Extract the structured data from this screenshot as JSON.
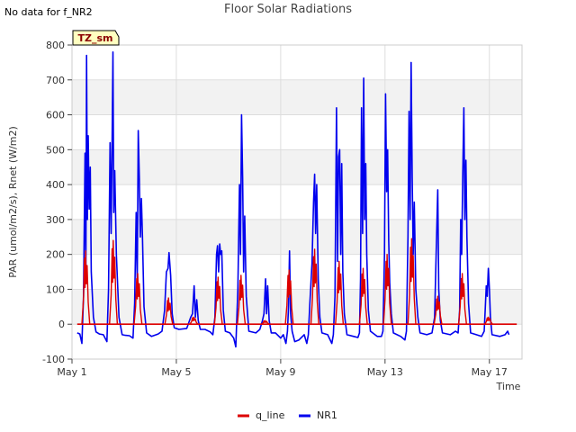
{
  "header": {
    "nodata_text": "No data for f_NR2"
  },
  "chart_data": {
    "type": "line",
    "title": "Floor Solar Radiations",
    "xlabel": "Time",
    "ylabel": "PAR (umol/m2/s), Rnet (W/m2)",
    "xlim": [
      1.0,
      18.25
    ],
    "ylim": [
      -100,
      800
    ],
    "y_ticks": [
      -100,
      0,
      100,
      200,
      300,
      400,
      500,
      600,
      700,
      800
    ],
    "x_ticks": [
      {
        "day": 1,
        "label": "May 1"
      },
      {
        "day": 5,
        "label": "May 5"
      },
      {
        "day": 9,
        "label": "May 9"
      },
      {
        "day": 13,
        "label": "May 13"
      },
      {
        "day": 17,
        "label": "May 17"
      }
    ],
    "tag_label": "TZ_sm",
    "legend": [
      {
        "name": "q_line",
        "color": "#dd0000"
      },
      {
        "name": "NR1",
        "color": "#0000ee"
      }
    ],
    "series": [
      {
        "name": "q_line",
        "color": "#dd0000",
        "points": [
          [
            1.2,
            0
          ],
          [
            18.05,
            0
          ]
        ]
      },
      {
        "name": "NR1",
        "color": "#0000ee",
        "points": [
          [
            1.2,
            -25
          ],
          [
            1.3,
            -28
          ],
          [
            1.38,
            -55
          ],
          [
            1.44,
            80
          ],
          [
            1.5,
            490
          ],
          [
            1.53,
            130
          ],
          [
            1.56,
            770
          ],
          [
            1.59,
            300
          ],
          [
            1.62,
            540
          ],
          [
            1.66,
            330
          ],
          [
            1.7,
            450
          ],
          [
            1.74,
            150
          ],
          [
            1.82,
            20
          ],
          [
            1.92,
            -22
          ],
          [
            2.05,
            -28
          ],
          [
            2.2,
            -30
          ],
          [
            2.34,
            -50
          ],
          [
            2.4,
            100
          ],
          [
            2.46,
            520
          ],
          [
            2.5,
            260
          ],
          [
            2.54,
            530
          ],
          [
            2.57,
            780
          ],
          [
            2.6,
            320
          ],
          [
            2.64,
            440
          ],
          [
            2.7,
            200
          ],
          [
            2.8,
            20
          ],
          [
            2.92,
            -30
          ],
          [
            3.05,
            -32
          ],
          [
            3.2,
            -33
          ],
          [
            3.34,
            -40
          ],
          [
            3.4,
            60
          ],
          [
            3.46,
            320
          ],
          [
            3.5,
            120
          ],
          [
            3.54,
            555
          ],
          [
            3.58,
            420
          ],
          [
            3.62,
            250
          ],
          [
            3.66,
            360
          ],
          [
            3.7,
            250
          ],
          [
            3.76,
            50
          ],
          [
            3.86,
            -25
          ],
          [
            4.05,
            -35
          ],
          [
            4.3,
            -28
          ],
          [
            4.45,
            -20
          ],
          [
            4.55,
            40
          ],
          [
            4.62,
            150
          ],
          [
            4.68,
            160
          ],
          [
            4.72,
            205
          ],
          [
            4.78,
            140
          ],
          [
            4.84,
            30
          ],
          [
            4.92,
            -10
          ],
          [
            5.1,
            -15
          ],
          [
            5.4,
            -12
          ],
          [
            5.55,
            20
          ],
          [
            5.62,
            30
          ],
          [
            5.68,
            110
          ],
          [
            5.73,
            20
          ],
          [
            5.78,
            70
          ],
          [
            5.84,
            10
          ],
          [
            5.92,
            -15
          ],
          [
            6.1,
            -15
          ],
          [
            6.3,
            -22
          ],
          [
            6.4,
            -30
          ],
          [
            6.48,
            20
          ],
          [
            6.54,
            200
          ],
          [
            6.58,
            225
          ],
          [
            6.62,
            150
          ],
          [
            6.66,
            230
          ],
          [
            6.7,
            200
          ],
          [
            6.74,
            210
          ],
          [
            6.8,
            40
          ],
          [
            6.88,
            -20
          ],
          [
            7.05,
            -25
          ],
          [
            7.2,
            -40
          ],
          [
            7.28,
            -65
          ],
          [
            7.36,
            100
          ],
          [
            7.42,
            400
          ],
          [
            7.46,
            200
          ],
          [
            7.5,
            600
          ],
          [
            7.54,
            420
          ],
          [
            7.58,
            150
          ],
          [
            7.62,
            310
          ],
          [
            7.68,
            80
          ],
          [
            7.78,
            -20
          ],
          [
            8.05,
            -25
          ],
          [
            8.2,
            -15
          ],
          [
            8.3,
            10
          ],
          [
            8.36,
            30
          ],
          [
            8.42,
            130
          ],
          [
            8.46,
            30
          ],
          [
            8.5,
            110
          ],
          [
            8.56,
            10
          ],
          [
            8.64,
            -25
          ],
          [
            8.8,
            -25
          ],
          [
            9.0,
            -40
          ],
          [
            9.1,
            -30
          ],
          [
            9.2,
            -55
          ],
          [
            9.26,
            -20
          ],
          [
            9.3,
            50
          ],
          [
            9.34,
            210
          ],
          [
            9.38,
            30
          ],
          [
            9.44,
            -20
          ],
          [
            9.54,
            -50
          ],
          [
            9.7,
            -45
          ],
          [
            9.9,
            -30
          ],
          [
            10.0,
            -55
          ],
          [
            10.06,
            -30
          ],
          [
            10.12,
            60
          ],
          [
            10.2,
            175
          ],
          [
            10.26,
            350
          ],
          [
            10.3,
            430
          ],
          [
            10.34,
            260
          ],
          [
            10.38,
            400
          ],
          [
            10.44,
            130
          ],
          [
            10.5,
            20
          ],
          [
            10.58,
            -25
          ],
          [
            10.8,
            -30
          ],
          [
            10.96,
            -55
          ],
          [
            11.02,
            -30
          ],
          [
            11.08,
            80
          ],
          [
            11.14,
            620
          ],
          [
            11.18,
            180
          ],
          [
            11.22,
            480
          ],
          [
            11.26,
            500
          ],
          [
            11.3,
            200
          ],
          [
            11.34,
            460
          ],
          [
            11.38,
            150
          ],
          [
            11.44,
            30
          ],
          [
            11.54,
            -30
          ],
          [
            11.8,
            -35
          ],
          [
            11.96,
            -38
          ],
          [
            12.02,
            -25
          ],
          [
            12.06,
            130
          ],
          [
            12.1,
            620
          ],
          [
            12.14,
            260
          ],
          [
            12.18,
            705
          ],
          [
            12.22,
            300
          ],
          [
            12.26,
            460
          ],
          [
            12.3,
            200
          ],
          [
            12.36,
            40
          ],
          [
            12.44,
            -20
          ],
          [
            12.7,
            -35
          ],
          [
            12.86,
            -35
          ],
          [
            12.92,
            -20
          ],
          [
            12.98,
            200
          ],
          [
            13.02,
            660
          ],
          [
            13.06,
            380
          ],
          [
            13.1,
            500
          ],
          [
            13.14,
            240
          ],
          [
            13.18,
            120
          ],
          [
            13.24,
            30
          ],
          [
            13.32,
            -25
          ],
          [
            13.6,
            -35
          ],
          [
            13.76,
            -45
          ],
          [
            13.82,
            -20
          ],
          [
            13.88,
            250
          ],
          [
            13.92,
            610
          ],
          [
            13.96,
            300
          ],
          [
            14.0,
            750
          ],
          [
            14.04,
            420
          ],
          [
            14.08,
            200
          ],
          [
            14.12,
            350
          ],
          [
            14.18,
            100
          ],
          [
            14.26,
            20
          ],
          [
            14.34,
            -25
          ],
          [
            14.6,
            -30
          ],
          [
            14.8,
            -25
          ],
          [
            14.9,
            20
          ],
          [
            14.96,
            200
          ],
          [
            15.02,
            385
          ],
          [
            15.06,
            100
          ],
          [
            15.12,
            10
          ],
          [
            15.2,
            -25
          ],
          [
            15.5,
            -30
          ],
          [
            15.7,
            -20
          ],
          [
            15.8,
            -25
          ],
          [
            15.86,
            40
          ],
          [
            15.9,
            300
          ],
          [
            15.94,
            200
          ],
          [
            15.98,
            430
          ],
          [
            16.02,
            620
          ],
          [
            16.06,
            300
          ],
          [
            16.1,
            470
          ],
          [
            16.14,
            250
          ],
          [
            16.2,
            60
          ],
          [
            16.28,
            -25
          ],
          [
            16.5,
            -30
          ],
          [
            16.7,
            -35
          ],
          [
            16.8,
            -20
          ],
          [
            16.84,
            40
          ],
          [
            16.88,
            110
          ],
          [
            16.92,
            80
          ],
          [
            16.96,
            160
          ],
          [
            17.0,
            100
          ],
          [
            17.04,
            20
          ],
          [
            17.1,
            -30
          ],
          [
            17.4,
            -35
          ],
          [
            17.6,
            -30
          ],
          [
            17.7,
            -20
          ],
          [
            17.75,
            -30
          ]
        ]
      }
    ],
    "q_line_peaks": [
      [
        1.52,
        210
      ],
      [
        2.58,
        240
      ],
      [
        3.52,
        145
      ],
      [
        4.7,
        75
      ],
      [
        5.66,
        20
      ],
      [
        6.6,
        135
      ],
      [
        7.48,
        140
      ],
      [
        8.4,
        10
      ],
      [
        9.32,
        155
      ],
      [
        10.3,
        215
      ],
      [
        11.24,
        180
      ],
      [
        12.16,
        160
      ],
      [
        13.08,
        200
      ],
      [
        14.02,
        245
      ],
      [
        15.02,
        80
      ],
      [
        15.96,
        145
      ],
      [
        16.96,
        20
      ]
    ]
  }
}
